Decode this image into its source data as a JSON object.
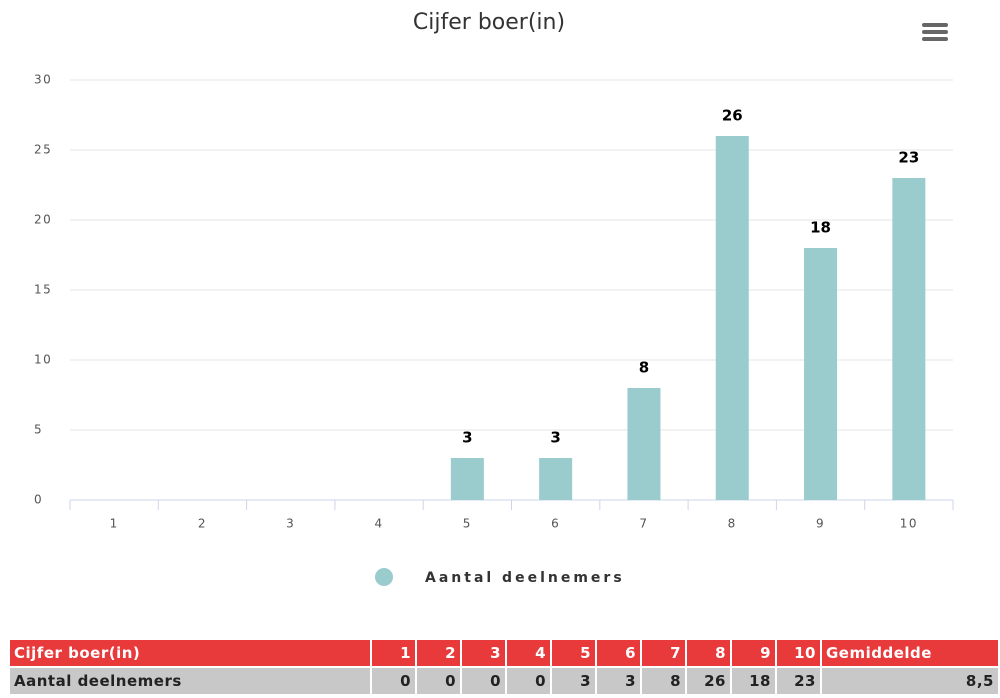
{
  "chart_data": {
    "type": "bar",
    "title": "Cijfer boer(in)",
    "categories": [
      "1",
      "2",
      "3",
      "4",
      "5",
      "6",
      "7",
      "8",
      "9",
      "10"
    ],
    "series": [
      {
        "name": "Aantal deelnemers",
        "color": "#9acbcd",
        "values": [
          0,
          0,
          0,
          0,
          3,
          3,
          8,
          26,
          18,
          23
        ]
      }
    ],
    "ylim": [
      0,
      30
    ],
    "yticks": [
      0,
      5,
      10,
      15,
      20,
      25,
      30
    ],
    "grid": true,
    "legend": "bottom"
  },
  "table": {
    "average_header": "Gemiddelde",
    "average": "8,5"
  }
}
